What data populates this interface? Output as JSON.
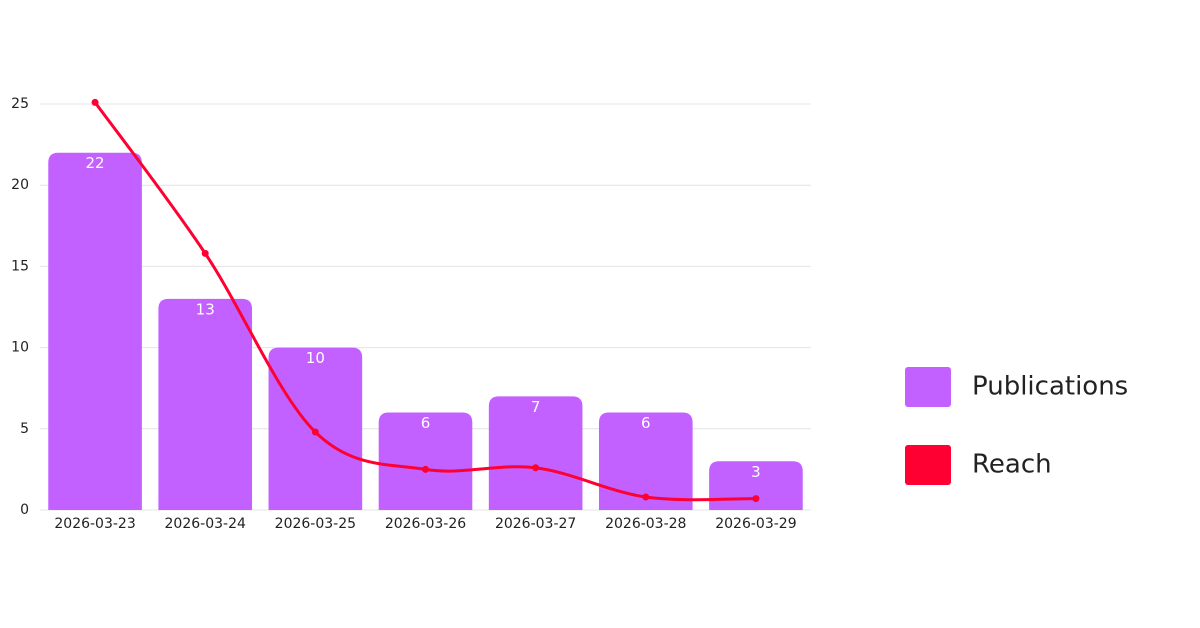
{
  "chart_data": {
    "type": "bar",
    "categories": [
      "2026-03-23",
      "2026-03-24",
      "2026-03-25",
      "2026-03-26",
      "2026-03-27",
      "2026-03-28",
      "2026-03-29"
    ],
    "series": [
      {
        "name": "Publications",
        "type": "bar",
        "color": "#c261ff",
        "values": [
          22,
          13,
          10,
          6,
          7,
          6,
          3
        ]
      },
      {
        "name": "Reach",
        "type": "line",
        "color": "#ff0033",
        "values": [
          25.1,
          15.8,
          4.8,
          2.5,
          2.6,
          0.8,
          0.7
        ]
      }
    ],
    "ylim": [
      0,
      25
    ],
    "yticks": [
      0,
      5,
      10,
      15,
      20,
      25
    ],
    "grid": true,
    "legend": "right"
  }
}
